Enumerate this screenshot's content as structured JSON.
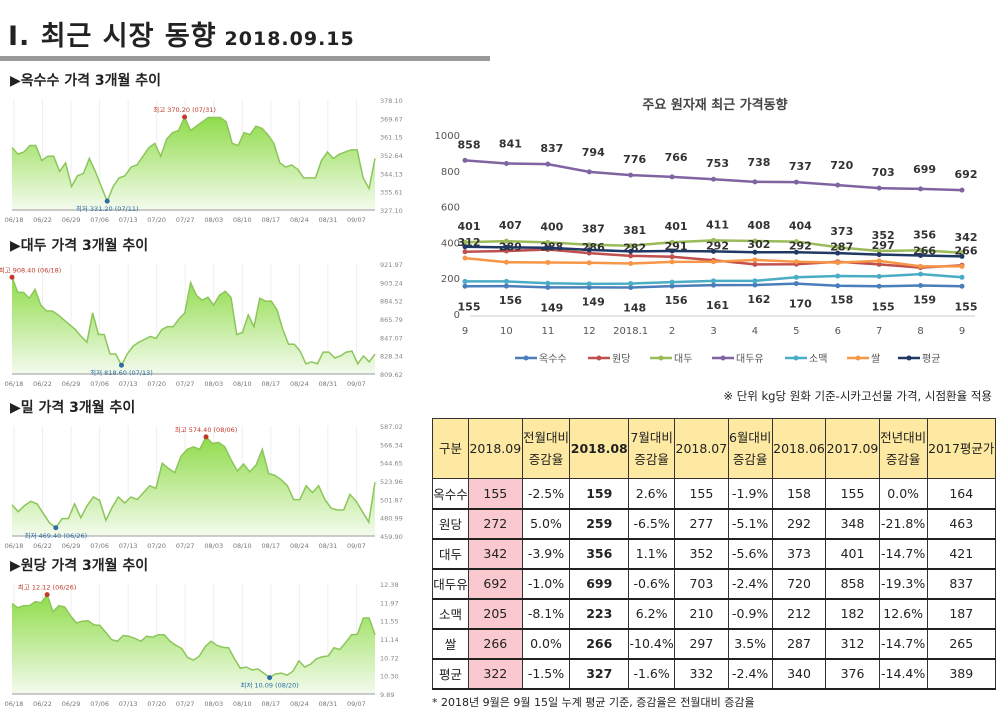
{
  "header": {
    "title": "Ⅰ. 최근 시장 동향",
    "date": "2018.09.15"
  },
  "mini_charts": [
    {
      "heading": "▶옥수수 가격 3개월 추이",
      "y_ticks": [
        "378.10",
        "369.67",
        "361.15",
        "352.64",
        "344.13",
        "335.61",
        "327.10"
      ],
      "ylim": [
        327.1,
        378.1
      ],
      "x_ticks": [
        "06/18",
        "06/22",
        "06/29",
        "07/06",
        "07/13",
        "07/20",
        "07/27",
        "08/03",
        "08/10",
        "08/17",
        "08/24",
        "08/31",
        "09/07"
      ],
      "high_label": "최고 370.20 (07/31)",
      "low_label": "최저 331.20 (07/11)",
      "values": [
        356,
        353,
        354,
        357,
        357,
        350,
        352,
        352,
        345,
        349,
        338,
        343,
        344,
        351,
        345,
        338,
        331.2,
        338,
        342,
        343,
        347,
        348,
        352,
        356,
        358,
        352,
        360,
        363,
        364,
        370.2,
        364,
        366,
        368,
        370,
        370,
        370,
        368,
        358,
        357,
        363,
        362,
        366,
        365,
        362,
        358,
        349,
        347,
        348,
        346,
        342,
        342,
        342,
        350,
        354,
        351,
        353,
        354,
        355,
        355,
        342,
        337,
        351
      ]
    },
    {
      "heading": "▶대두 가격 3개월 추이",
      "y_ticks": [
        "921.97",
        "903.24",
        "884.52",
        "865.79",
        "847.07",
        "828.34",
        "809.62"
      ],
      "ylim": [
        809.62,
        921.97
      ],
      "x_ticks": [
        "06/18",
        "06/22",
        "06/29",
        "07/06",
        "07/13",
        "07/20",
        "07/27",
        "08/03",
        "08/10",
        "08/17",
        "08/24",
        "08/31",
        "09/07"
      ],
      "high_label": "최고 908.40 (06/18)",
      "low_label": "최저 818.60 (07/13)",
      "values": [
        908.4,
        893,
        893,
        887,
        896,
        880,
        874,
        874,
        870,
        865,
        860,
        855,
        848,
        842,
        872,
        850,
        850,
        830,
        830,
        818.6,
        830,
        838,
        842,
        845,
        848,
        846,
        855,
        858,
        858,
        866,
        872,
        903,
        890,
        885,
        888,
        880,
        890,
        894,
        888,
        850,
        852,
        870,
        858,
        887,
        884,
        884,
        875,
        855,
        840,
        840,
        833,
        820,
        822,
        820,
        832,
        832,
        826,
        828,
        832,
        833,
        820,
        828,
        822,
        830
      ]
    },
    {
      "heading": "▶밀 가격 3개월 추이",
      "y_ticks": [
        "587.02",
        "566.34",
        "544.65",
        "523.96",
        "501.87",
        "480.99",
        "459.90"
      ],
      "ylim": [
        459.9,
        587.02
      ],
      "x_ticks": [
        "06/18",
        "06/22",
        "06/29",
        "07/06",
        "07/13",
        "07/20",
        "07/27",
        "08/03",
        "08/10",
        "08/17",
        "08/24",
        "08/31",
        "09/07"
      ],
      "high_label": "최고 574.40 (08/06)",
      "low_label": "최저 469.40 (06/26)",
      "values": [
        496,
        488,
        495,
        500,
        497,
        486,
        475,
        469.4,
        480,
        480,
        497,
        481,
        495,
        505,
        501,
        478,
        493,
        505,
        498,
        505,
        502,
        510,
        518,
        515,
        544,
        538,
        533,
        552,
        560,
        563,
        560,
        574.4,
        567,
        568,
        563,
        548,
        535,
        543,
        534,
        542,
        560,
        532,
        530,
        525,
        518,
        502,
        502,
        518,
        510,
        518,
        502,
        492,
        490,
        490,
        508,
        500,
        488,
        476,
        522
      ]
    },
    {
      "heading": "▶원당 가격 3개월 추이",
      "y_ticks": [
        "12.38",
        "11.97",
        "11.55",
        "11.14",
        "10.72",
        "10.30",
        "9.89"
      ],
      "ylim": [
        9.69,
        12.38
      ],
      "x_ticks": [
        "06/18",
        "06/22",
        "06/29",
        "07/06",
        "07/13",
        "07/20",
        "07/27",
        "08/03",
        "08/10",
        "08/17",
        "08/24",
        "08/31",
        "09/07"
      ],
      "high_label": "최고 12.12 (06/26)",
      "low_label": "최저 10.09 (08/20)",
      "values": [
        11.9,
        11.8,
        11.85,
        11.85,
        11.95,
        11.92,
        12.12,
        11.7,
        11.85,
        11.82,
        11.6,
        11.43,
        11.47,
        11.48,
        11.38,
        11.37,
        11.2,
        11.02,
        10.98,
        11.12,
        11.1,
        11.05,
        10.98,
        11.1,
        11.08,
        11.14,
        11.14,
        10.98,
        10.88,
        10.8,
        10.58,
        10.52,
        10.62,
        10.85,
        10.98,
        10.88,
        10.83,
        10.82,
        10.55,
        10.32,
        10.35,
        10.28,
        10.3,
        10.2,
        10.09,
        10.18,
        10.2,
        10.15,
        10.25,
        10.5,
        10.35,
        10.42,
        10.55,
        10.6,
        10.62,
        10.82,
        10.78,
        10.95,
        11.14,
        11.15,
        11.55,
        11.55,
        11.14
      ]
    }
  ],
  "chart_data": {
    "type": "line",
    "title": "주요 원자재 최근 가격동향",
    "categories": [
      "9",
      "10",
      "11",
      "12",
      "2018.1",
      "2",
      "3",
      "4",
      "5",
      "6",
      "7",
      "8",
      "9"
    ],
    "ylim": [
      0,
      1000
    ],
    "y_ticks": [
      "0",
      "200",
      "400",
      "600",
      "800",
      "1000"
    ],
    "legend": "bottom",
    "grid": false,
    "series": [
      {
        "name": "옥수수",
        "color": "#4a7ebb",
        "labels": "below",
        "values": [
          155,
          156,
          149,
          149,
          148,
          156,
          161,
          162,
          170,
          158,
          155,
          159,
          155
        ]
      },
      {
        "name": "원당",
        "color": "#c0504d",
        "values": [
          348,
          352,
          360,
          340,
          325,
          320,
          300,
          277,
          278,
          292,
          277,
          259,
          272
        ]
      },
      {
        "name": "대두",
        "color": "#9bbb59",
        "labels": "above",
        "values": [
          401,
          407,
          400,
          387,
          381,
          401,
          411,
          408,
          404,
          373,
          352,
          356,
          342
        ]
      },
      {
        "name": "대두유",
        "color": "#8064a2",
        "labels": "above",
        "values": [
          858,
          841,
          837,
          794,
          776,
          766,
          753,
          738,
          737,
          720,
          703,
          699,
          692
        ]
      },
      {
        "name": "소맥",
        "color": "#4bacc6",
        "values": [
          182,
          182,
          172,
          168,
          170,
          178,
          185,
          185,
          205,
          212,
          210,
          223,
          205
        ]
      },
      {
        "name": "쌀",
        "color": "#f79646",
        "labels": "above",
        "values": [
          312,
          289,
          288,
          286,
          282,
          291,
          292,
          302,
          292,
          287,
          297,
          266,
          266
        ]
      },
      {
        "name": "평균",
        "color": "#1f3864",
        "values": [
          376,
          372,
          370,
          358,
          350,
          352,
          350,
          345,
          345,
          340,
          332,
          327,
          322
        ]
      }
    ]
  },
  "note": "※ 단위 kg당 원화 기준-시카고선물 가격, 시점환율 적용",
  "table": {
    "headers": [
      "구분",
      "2018.09",
      "전월대비\n증감율",
      "2018.08",
      "7월대비\n증감율",
      "2018.07",
      "6월대비\n증감율",
      "2018.06",
      "2017.09",
      "전년대비\n증감율",
      "2017평균가"
    ],
    "rows": [
      [
        "옥수수",
        "155",
        "-2.5%",
        "159",
        "2.6%",
        "155",
        "-1.9%",
        "158",
        "155",
        "0.0%",
        "164"
      ],
      [
        "원당",
        "272",
        "5.0%",
        "259",
        "-6.5%",
        "277",
        "-5.1%",
        "292",
        "348",
        "-21.8%",
        "463"
      ],
      [
        "대두",
        "342",
        "-3.9%",
        "356",
        "1.1%",
        "352",
        "-5.6%",
        "373",
        "401",
        "-14.7%",
        "421"
      ],
      [
        "대두유",
        "692",
        "-1.0%",
        "699",
        "-0.6%",
        "703",
        "-2.4%",
        "720",
        "858",
        "-19.3%",
        "837"
      ],
      [
        "소맥",
        "205",
        "-8.1%",
        "223",
        "6.2%",
        "210",
        "-0.9%",
        "212",
        "182",
        "12.6%",
        "187"
      ],
      [
        "쌀",
        "266",
        "0.0%",
        "266",
        "-10.4%",
        "297",
        "3.5%",
        "287",
        "312",
        "-14.7%",
        "265"
      ],
      [
        "평균",
        "322",
        "-1.5%",
        "327",
        "-1.6%",
        "332",
        "-2.4%",
        "340",
        "376",
        "-14.4%",
        "389"
      ]
    ]
  },
  "footnote": "* 2018년 9월은 9월 15일 누계 평균 기준, 증감율은 전월대비 증감율"
}
